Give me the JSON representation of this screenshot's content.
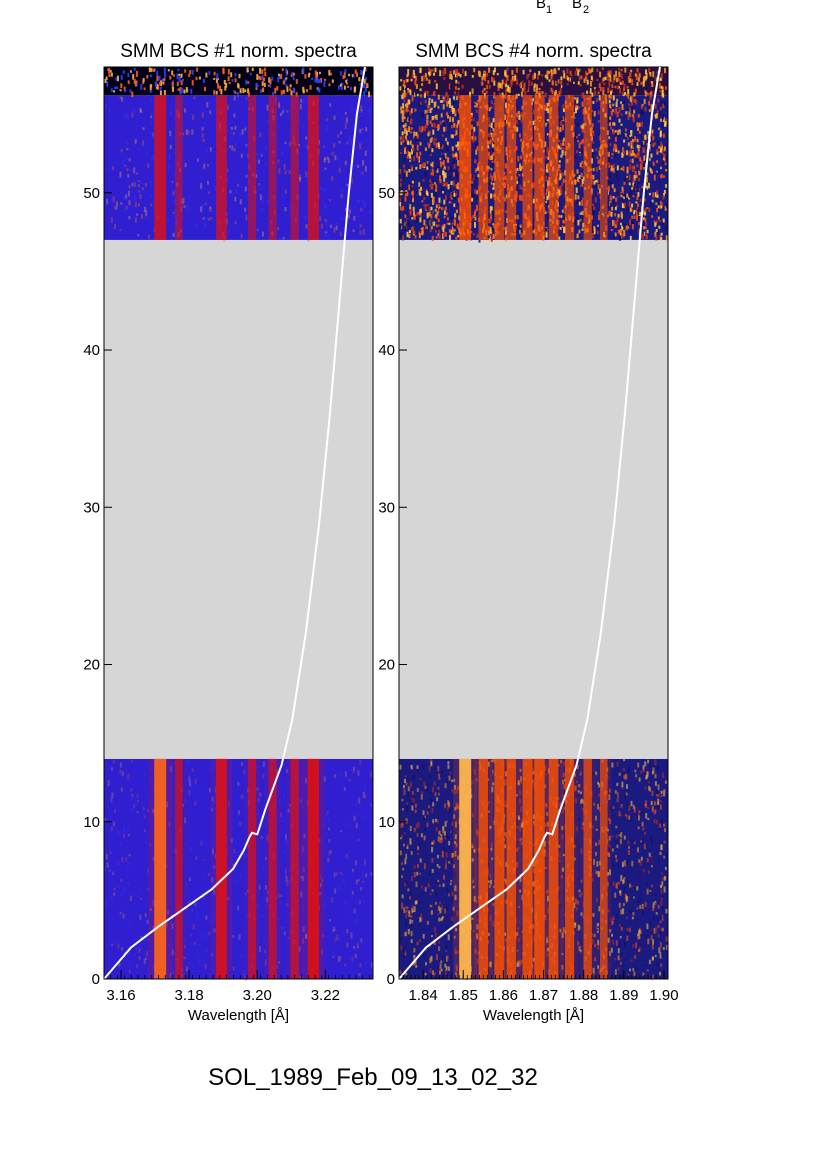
{
  "header": {
    "b1": "B",
    "b1_sub": "1",
    "b2": "B",
    "b2_sub": "2"
  },
  "event": {
    "label": "SOL_1989_Feb_09_13_02_32"
  },
  "chart_data": [
    {
      "type": "heatmap",
      "title": "SMM BCS #1 norm. spectra",
      "xlabel": "Wavelength [Å]",
      "ylabel": "",
      "xlim": [
        3.155,
        3.234
      ],
      "ylim": [
        0,
        58
      ],
      "xticks": [
        3.16,
        3.18,
        3.2,
        3.22
      ],
      "xtick_labels": [
        "3.16",
        "3.18",
        "3.20",
        "3.22"
      ],
      "yticks": [
        0,
        10,
        20,
        30,
        40,
        50
      ],
      "ytick_labels": [
        "0",
        "10",
        "20",
        "30",
        "40",
        "50"
      ],
      "data_gap": [
        14,
        47
      ],
      "colors": {
        "gap": "#d6d6d6",
        "background": "#2f1fd0",
        "line": "#e01010",
        "peak": "#ff7a20",
        "noise_top": "#000018"
      },
      "emission_lines": [
        {
          "wavelength": 3.1715,
          "strength": 1.0
        },
        {
          "wavelength": 3.177,
          "strength": 0.45
        },
        {
          "wavelength": 3.1895,
          "strength": 0.85
        },
        {
          "wavelength": 3.1985,
          "strength": 0.5
        },
        {
          "wavelength": 3.2045,
          "strength": 0.5
        },
        {
          "wavelength": 3.211,
          "strength": 0.55
        },
        {
          "wavelength": 3.2165,
          "strength": 0.9
        }
      ],
      "overlay_curve": [
        [
          0,
          0
        ],
        [
          0.1,
          2.0
        ],
        [
          0.2,
          3.3
        ],
        [
          0.3,
          4.5
        ],
        [
          0.4,
          5.7
        ],
        [
          0.48,
          7.0
        ],
        [
          0.52,
          8.2
        ],
        [
          0.54,
          9.0
        ],
        [
          0.55,
          9.3
        ],
        [
          0.57,
          9.2
        ],
        [
          0.6,
          10.8
        ],
        [
          0.66,
          13.6
        ],
        [
          0.7,
          16.5
        ],
        [
          0.75,
          22.0
        ],
        [
          0.8,
          29.0
        ],
        [
          0.84,
          36.0
        ],
        [
          0.88,
          44.0
        ],
        [
          0.91,
          50.0
        ],
        [
          0.94,
          55.0
        ],
        [
          0.97,
          58.0
        ]
      ]
    },
    {
      "type": "heatmap",
      "title": "SMM BCS #4 norm. spectra",
      "xlabel": "Wavelength [Å]",
      "ylabel": "",
      "xlim": [
        1.834,
        1.901
      ],
      "ylim": [
        0,
        58
      ],
      "xticks": [
        1.84,
        1.85,
        1.86,
        1.87,
        1.88,
        1.89,
        1.9
      ],
      "xtick_labels": [
        "1.84",
        "1.85",
        "1.86",
        "1.87",
        "1.88",
        "1.89",
        "1.90"
      ],
      "yticks": [
        0,
        10,
        20,
        30,
        40,
        50
      ],
      "ytick_labels": [
        "0",
        "10",
        "20",
        "30",
        "40",
        "50"
      ],
      "data_gap": [
        14,
        47
      ],
      "colors": {
        "gap": "#d6d6d6",
        "background": "#1a1a80",
        "line": "#ff5000",
        "peak": "#ffd060",
        "noise_top": "#ff9a1a"
      },
      "emission_lines": [
        {
          "wavelength": 1.8505,
          "strength": 1.0
        },
        {
          "wavelength": 1.855,
          "strength": 0.7
        },
        {
          "wavelength": 1.859,
          "strength": 0.75
        },
        {
          "wavelength": 1.862,
          "strength": 0.7
        },
        {
          "wavelength": 1.866,
          "strength": 0.75
        },
        {
          "wavelength": 1.869,
          "strength": 0.8
        },
        {
          "wavelength": 1.8725,
          "strength": 0.7
        },
        {
          "wavelength": 1.8765,
          "strength": 0.65
        },
        {
          "wavelength": 1.881,
          "strength": 0.55
        },
        {
          "wavelength": 1.885,
          "strength": 0.45
        }
      ],
      "overlay_curve": [
        [
          0,
          0
        ],
        [
          0.1,
          2.0
        ],
        [
          0.2,
          3.3
        ],
        [
          0.3,
          4.5
        ],
        [
          0.4,
          5.7
        ],
        [
          0.48,
          7.0
        ],
        [
          0.52,
          8.2
        ],
        [
          0.54,
          9.0
        ],
        [
          0.55,
          9.3
        ],
        [
          0.57,
          9.2
        ],
        [
          0.6,
          10.8
        ],
        [
          0.66,
          13.6
        ],
        [
          0.7,
          16.5
        ],
        [
          0.75,
          22.0
        ],
        [
          0.8,
          29.0
        ],
        [
          0.84,
          36.0
        ],
        [
          0.88,
          44.0
        ],
        [
          0.91,
          50.0
        ],
        [
          0.94,
          55.0
        ],
        [
          0.97,
          58.0
        ]
      ]
    }
  ]
}
